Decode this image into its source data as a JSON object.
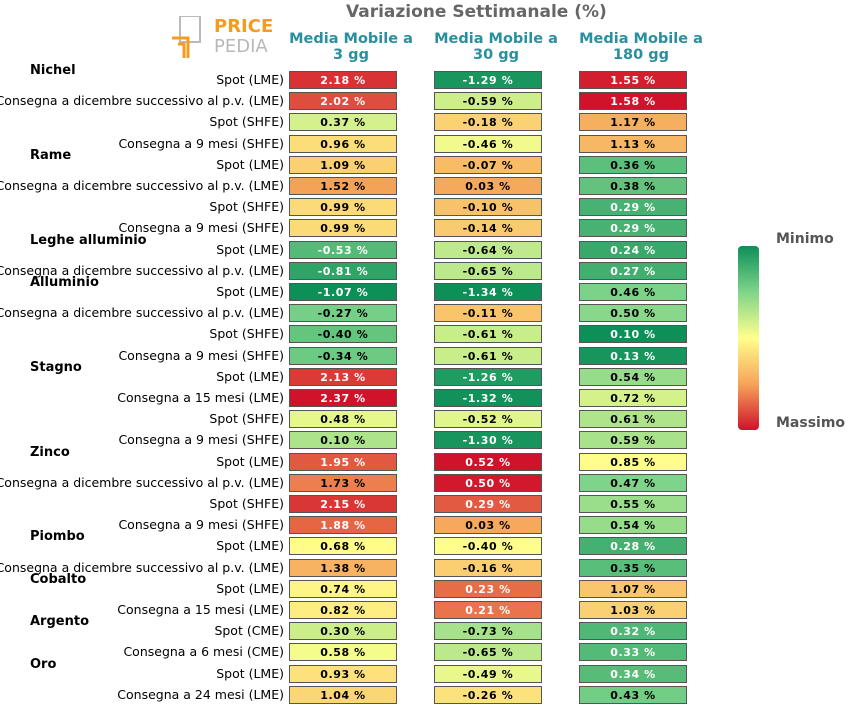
{
  "title": "Variazione Settimanale (%)",
  "logo": {
    "word1": "PRICE",
    "word2": "PEDIA"
  },
  "columns": [
    "Media Mobile a 3 gg",
    "Media Mobile a 30 gg",
    "Media Mobile a 180 gg"
  ],
  "legend": {
    "min_label": "Minimo",
    "max_label": "Massimo"
  },
  "colors": {
    "min": "#0d8f58",
    "mid": "#ffff8c",
    "max": "#d0122a"
  },
  "chart_data": {
    "type": "table",
    "title": "Variazione Settimanale (%)",
    "columns": [
      "Media Mobile a 3 gg",
      "Media Mobile a 30 gg",
      "Media Mobile a 180 gg"
    ],
    "groups": [
      {
        "name": "Nichel",
        "rows": [
          {
            "label": "Spot (LME)",
            "values": [
              2.18,
              -1.29,
              1.55
            ]
          },
          {
            "label": "Consegna a dicembre successivo al p.v. (LME)",
            "values": [
              2.02,
              -0.59,
              1.58
            ]
          },
          {
            "label": "Spot (SHFE)",
            "values": [
              0.37,
              -0.18,
              1.17
            ]
          },
          {
            "label": "Consegna a 9 mesi (SHFE)",
            "values": [
              0.96,
              -0.46,
              1.13
            ]
          }
        ]
      },
      {
        "name": "Rame",
        "rows": [
          {
            "label": "Spot (LME)",
            "values": [
              1.09,
              -0.07,
              0.36
            ]
          },
          {
            "label": "Consegna a dicembre successivo al p.v. (LME)",
            "values": [
              1.52,
              0.03,
              0.38
            ]
          },
          {
            "label": "Spot (SHFE)",
            "values": [
              0.99,
              -0.1,
              0.29
            ]
          },
          {
            "label": "Consegna a 9 mesi (SHFE)",
            "values": [
              0.99,
              -0.14,
              0.29
            ]
          }
        ]
      },
      {
        "name": "Leghe alluminio",
        "rows": [
          {
            "label": "Spot (LME)",
            "values": [
              -0.53,
              -0.64,
              0.24
            ]
          },
          {
            "label": "Consegna a dicembre successivo al p.v. (LME)",
            "values": [
              -0.81,
              -0.65,
              0.27
            ]
          }
        ]
      },
      {
        "name": "Alluminio",
        "rows": [
          {
            "label": "Spot (LME)",
            "values": [
              -1.07,
              -1.34,
              0.46
            ]
          },
          {
            "label": "Consegna a dicembre successivo al p.v. (LME)",
            "values": [
              -0.27,
              -0.11,
              0.5
            ]
          },
          {
            "label": "Spot (SHFE)",
            "values": [
              -0.4,
              -0.61,
              0.1
            ]
          },
          {
            "label": "Consegna a 9 mesi (SHFE)",
            "values": [
              -0.34,
              -0.61,
              0.13
            ]
          }
        ]
      },
      {
        "name": "Stagno",
        "rows": [
          {
            "label": "Spot (LME)",
            "values": [
              2.13,
              -1.26,
              0.54
            ]
          },
          {
            "label": "Consegna a 15 mesi (LME)",
            "values": [
              2.37,
              -1.32,
              0.72
            ]
          },
          {
            "label": "Spot (SHFE)",
            "values": [
              0.48,
              -0.52,
              0.61
            ]
          },
          {
            "label": "Consegna a 9 mesi (SHFE)",
            "values": [
              0.1,
              -1.3,
              0.59
            ]
          }
        ]
      },
      {
        "name": "Zinco",
        "rows": [
          {
            "label": "Spot (LME)",
            "values": [
              1.95,
              0.52,
              0.85
            ]
          },
          {
            "label": "Consegna a dicembre successivo al p.v. (LME)",
            "values": [
              1.73,
              0.5,
              0.47
            ]
          },
          {
            "label": "Spot (SHFE)",
            "values": [
              2.15,
              0.29,
              0.55
            ]
          },
          {
            "label": "Consegna a 9 mesi (SHFE)",
            "values": [
              1.88,
              0.03,
              0.54
            ]
          }
        ]
      },
      {
        "name": "Piombo",
        "rows": [
          {
            "label": "Spot (LME)",
            "values": [
              0.68,
              -0.4,
              0.28
            ]
          },
          {
            "label": "Consegna a dicembre successivo al p.v. (LME)",
            "values": [
              1.38,
              -0.16,
              0.35
            ]
          }
        ]
      },
      {
        "name": "Cobalto",
        "rows": [
          {
            "label": "Spot (LME)",
            "values": [
              0.74,
              0.23,
              1.07
            ]
          },
          {
            "label": "Consegna a 15 mesi (LME)",
            "values": [
              0.82,
              0.21,
              1.03
            ]
          }
        ]
      },
      {
        "name": "Argento",
        "rows": [
          {
            "label": "Spot (CME)",
            "values": [
              0.3,
              -0.73,
              0.32
            ]
          },
          {
            "label": "Consegna a 6 mesi (CME)",
            "values": [
              0.58,
              -0.65,
              0.33
            ]
          }
        ]
      },
      {
        "name": "Oro",
        "rows": [
          {
            "label": "Spot (LME)",
            "values": [
              0.93,
              -0.49,
              0.34
            ]
          },
          {
            "label": "Consegna a 24 mesi (LME)",
            "values": [
              1.04,
              -0.26,
              0.43
            ]
          }
        ]
      }
    ]
  }
}
